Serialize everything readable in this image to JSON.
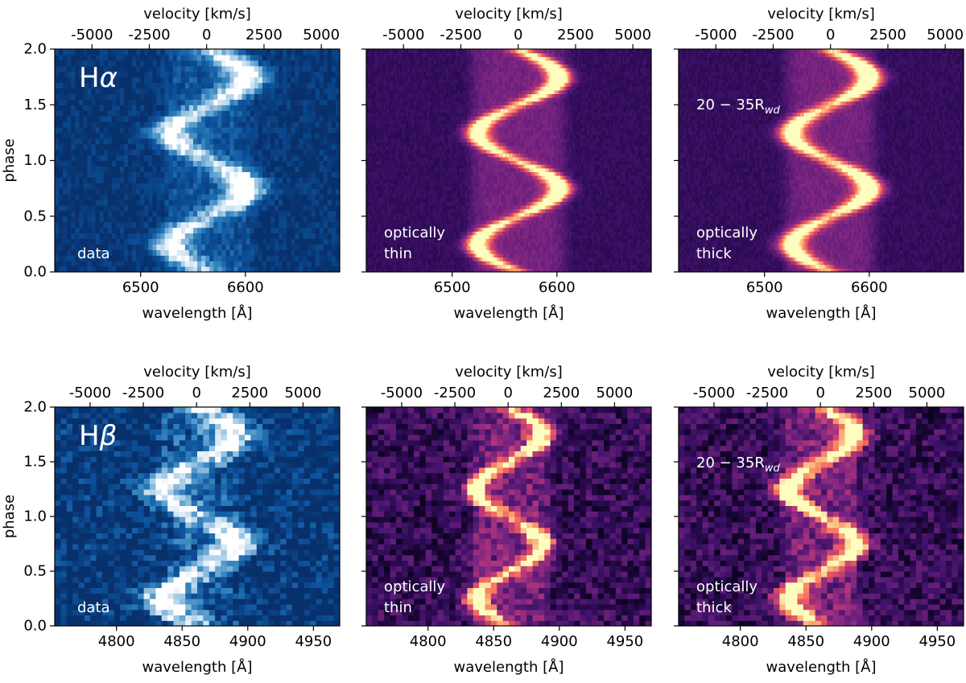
{
  "figure": {
    "colors": {
      "data_dark": "#08306b",
      "data_mid": "#2e7ebc",
      "data_light": "#ffffff",
      "model_dark": "#0d0221",
      "model_mid": "#6a2c8f",
      "model_bright": "#fcfdbf",
      "text_on_plot": "#ffffff",
      "axis": "#000000"
    }
  },
  "chart_data": [
    {
      "type": "heatmap",
      "panel": "top-left",
      "series_kind": "data",
      "colormap": "blues-reversed",
      "line_label": "Hα",
      "annotation": [
        "data"
      ],
      "xlabel": "wavelength [Å]",
      "ylabel": "phase",
      "top_axis_label": "velocity [km/s]",
      "xlim": [
        6418,
        6690
      ],
      "ylim": [
        0,
        2.0
      ],
      "x_ticks": [
        6500,
        6600
      ],
      "x_tick_labels": [
        "6500",
        "6600"
      ],
      "y_ticks": [
        0.0,
        0.5,
        1.0,
        1.5,
        2.0
      ],
      "y_tick_labels": [
        "0.0",
        "0.5",
        "1.0",
        "1.5",
        "2.0"
      ],
      "velocity_ticks": [
        -5000,
        -2500,
        0,
        2500,
        5000
      ],
      "velocity_tick_labels": [
        "-5000",
        "-2500",
        "0",
        "2500",
        "5000"
      ],
      "rest_wavelength": 6563,
      "center_wavelength": 6565,
      "s_wave_amplitude": 38,
      "s_wave_width": 15,
      "peak_intensity_blue_side": 0.85,
      "peak_intensity_red_side": 0.95,
      "noise_level": 0.16,
      "bins_x": 70,
      "bins_y": 40
    },
    {
      "type": "heatmap",
      "panel": "top-middle",
      "series_kind": "model",
      "colormap": "magma",
      "annotation": [
        "optically",
        "thin"
      ],
      "xlabel": "wavelength [Å]",
      "top_axis_label": "velocity [km/s]",
      "xlim": [
        6418,
        6690
      ],
      "ylim": [
        0,
        2.0
      ],
      "x_ticks": [
        6500,
        6600
      ],
      "x_tick_labels": [
        "6500",
        "6600"
      ],
      "velocity_ticks": [
        -5000,
        -2500,
        0,
        2500,
        5000
      ],
      "velocity_tick_labels": [
        "-5000",
        "-2500",
        "0",
        "2500",
        "5000"
      ],
      "rest_wavelength": 6563,
      "center_wavelength": 6563,
      "s_wave_amplitude": 40,
      "s_wave_width": 9,
      "peak_intensity_blue_side": 0.85,
      "peak_intensity_red_side": 0.95,
      "noise_level": 0.05,
      "bins_x": 150,
      "bins_y": 60
    },
    {
      "type": "heatmap",
      "panel": "top-right",
      "series_kind": "model",
      "colormap": "magma",
      "annotation": [
        "optically",
        "thick"
      ],
      "region_label": "20 − 35R",
      "region_label_sub": "wd",
      "xlabel": "wavelength [Å]",
      "top_axis_label": "velocity [km/s]",
      "xlim": [
        6418,
        6690
      ],
      "ylim": [
        0,
        2.0
      ],
      "x_ticks": [
        6500,
        6600
      ],
      "x_tick_labels": [
        "6500",
        "6600"
      ],
      "velocity_ticks": [
        -5000,
        -2500,
        0,
        2500,
        5000
      ],
      "velocity_tick_labels": [
        "-5000",
        "-2500",
        "0",
        "2500",
        "5000"
      ],
      "rest_wavelength": 6563,
      "center_wavelength": 6563,
      "s_wave_amplitude": 38,
      "s_wave_width": 10,
      "peak_intensity_blue_side": 0.85,
      "peak_intensity_red_side": 0.95,
      "noise_level": 0.05,
      "bins_x": 150,
      "bins_y": 60
    },
    {
      "type": "heatmap",
      "panel": "bottom-left",
      "series_kind": "data",
      "colormap": "blues-reversed",
      "line_label": "Hβ",
      "annotation": [
        "data"
      ],
      "xlabel": "wavelength [Å]",
      "ylabel": "phase",
      "top_axis_label": "velocity [km/s]",
      "xlim": [
        4753,
        4970
      ],
      "ylim": [
        0,
        2.0
      ],
      "x_ticks": [
        4800,
        4850,
        4900,
        4950
      ],
      "x_tick_labels": [
        "4800",
        "4850",
        "4900",
        "4950"
      ],
      "y_ticks": [
        0.0,
        0.5,
        1.0,
        1.5,
        2.0
      ],
      "y_tick_labels": [
        "0.0",
        "0.5",
        "1.0",
        "1.5",
        "2.0"
      ],
      "velocity_ticks": [
        -5000,
        -2500,
        0,
        2500,
        5000
      ],
      "velocity_tick_labels": [
        "-5000",
        "-2500",
        "0",
        "2500",
        "5000"
      ],
      "rest_wavelength": 4861,
      "center_wavelength": 4863,
      "s_wave_amplitude": 28,
      "s_wave_width": 13,
      "peak_intensity_blue_side": 0.9,
      "peak_intensity_red_side": 0.95,
      "noise_level": 0.32,
      "bins_x": 48,
      "bins_y": 40
    },
    {
      "type": "heatmap",
      "panel": "bottom-middle",
      "series_kind": "model",
      "colormap": "magma",
      "annotation": [
        "optically",
        "thin"
      ],
      "xlabel": "wavelength [Å]",
      "top_axis_label": "velocity [km/s]",
      "xlim": [
        4753,
        4970
      ],
      "ylim": [
        0,
        2.0
      ],
      "x_ticks": [
        4800,
        4850,
        4900,
        4950
      ],
      "x_tick_labels": [
        "4800",
        "4850",
        "4900",
        "4950"
      ],
      "velocity_ticks": [
        -5000,
        -2500,
        0,
        2500,
        5000
      ],
      "velocity_tick_labels": [
        "-5000",
        "-2500",
        "0",
        "2500",
        "5000"
      ],
      "rest_wavelength": 4861,
      "center_wavelength": 4862,
      "s_wave_amplitude": 26,
      "s_wave_width": 7,
      "peak_intensity_blue_side": 0.85,
      "peak_intensity_red_side": 0.85,
      "noise_level": 0.18,
      "bins_x": 48,
      "bins_y": 40
    },
    {
      "type": "heatmap",
      "panel": "bottom-right",
      "series_kind": "model",
      "colormap": "magma",
      "annotation": [
        "optically",
        "thick"
      ],
      "region_label": "20 − 35R",
      "region_label_sub": "wd",
      "xlabel": "wavelength [Å]",
      "top_axis_label": "velocity [km/s]",
      "xlim": [
        4753,
        4970
      ],
      "ylim": [
        0,
        2.0
      ],
      "x_ticks": [
        4800,
        4850,
        4900,
        4950
      ],
      "x_tick_labels": [
        "4800",
        "4850",
        "4900",
        "4950"
      ],
      "velocity_ticks": [
        -5000,
        -2500,
        0,
        2500,
        5000
      ],
      "velocity_tick_labels": [
        "-5000",
        "-2500",
        "0",
        "2500",
        "5000"
      ],
      "rest_wavelength": 4861,
      "center_wavelength": 4862,
      "s_wave_amplitude": 26,
      "s_wave_width": 8,
      "peak_intensity_blue_side": 0.9,
      "peak_intensity_red_side": 0.9,
      "noise_level": 0.18,
      "bins_x": 48,
      "bins_y": 40
    }
  ]
}
